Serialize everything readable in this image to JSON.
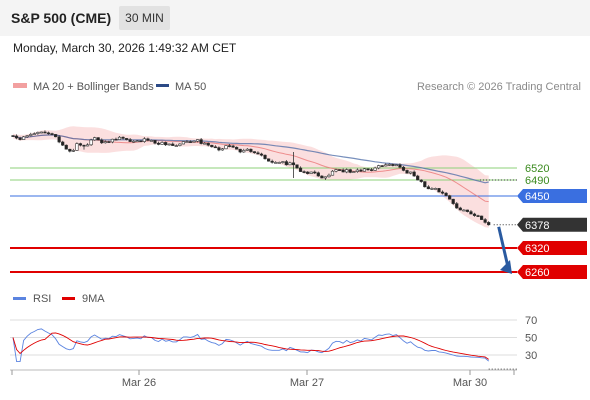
{
  "header": {
    "title": "S&P 500 (CME)",
    "timeframe": "30 MIN",
    "datetime": "Monday, March 30, 2026 1:49:32 AM CET"
  },
  "colors": {
    "candle_up": "#ffffff",
    "candle_down": "#222222",
    "bollinger_band": "#f6b8b8",
    "ma20": "#e86a6a",
    "ma50": "#4a6aa5",
    "support_minor": "#8ed27a",
    "pivot": "#3a6fe0",
    "target": "#e00000",
    "last_price": "#333333",
    "arrow": "#2a5aa0",
    "rsi": "#5b84e0",
    "rsi_ma": "#e00000"
  },
  "chart_data": [
    {
      "type": "candlestick",
      "title": "",
      "legend": [
        "MA 20 + Bollinger Bands",
        "MA 50"
      ],
      "legend_position": "top-left",
      "watermark": "Research © 2026 Trading Central",
      "x_tick_labels": [
        "Mar 26",
        "Mar 27",
        "Mar 30"
      ],
      "y_range": [
        6240,
        6630
      ],
      "last_price": 6378,
      "levels": [
        {
          "label": "6520",
          "value": 6520,
          "kind": "resistance-minor"
        },
        {
          "label": "6490",
          "value": 6490,
          "kind": "resistance-minor"
        },
        {
          "label": "6450",
          "value": 6450,
          "kind": "pivot"
        },
        {
          "label": "6320",
          "value": 6320,
          "kind": "target"
        },
        {
          "label": "6260",
          "value": 6260,
          "kind": "target"
        }
      ],
      "forecast": {
        "direction": "down",
        "from": 6378,
        "to": 6260
      },
      "close": [
        6600,
        6595,
        6591,
        6598,
        6601,
        6604,
        6606,
        6609,
        6610,
        6608,
        6606,
        6604,
        6598,
        6585,
        6577,
        6567,
        6562,
        6564,
        6581,
        6577,
        6575,
        6578,
        6590,
        6596,
        6590,
        6583,
        6586,
        6585,
        6592,
        6591,
        6597,
        6594,
        6591,
        6586,
        6587,
        6588,
        6586,
        6593,
        6589,
        6589,
        6582,
        6579,
        6584,
        6578,
        6580,
        6576,
        6576,
        6580,
        6586,
        6586,
        6585,
        6587,
        6591,
        6581,
        6582,
        6577,
        6573,
        6571,
        6565,
        6568,
        6576,
        6575,
        6572,
        6567,
        6560,
        6564,
        6567,
        6561,
        6558,
        6555,
        6552,
        6543,
        6537,
        6534,
        6534,
        6534,
        6536,
        6528,
        6533,
        6528,
        6520,
        6511,
        6510,
        6506,
        6510,
        6508,
        6500,
        6495,
        6498,
        6502,
        6512,
        6516,
        6515,
        6510,
        6516,
        6509,
        6511,
        6515,
        6512,
        6518,
        6516,
        6514,
        6520,
        6526,
        6525,
        6528,
        6529,
        6526,
        6528,
        6522,
        6514,
        6507,
        6510,
        6500,
        6490,
        6486,
        6473,
        6468,
        6469,
        6469,
        6460,
        6457,
        6451,
        6442,
        6431,
        6420,
        6415,
        6415,
        6411,
        6405,
        6401,
        6400,
        6391,
        6384,
        6378
      ],
      "ma20_last": 6436,
      "ma50_last": 6485
    },
    {
      "type": "line",
      "title": "",
      "legend": [
        "RSI",
        "9MA"
      ],
      "legend_position": "top-left",
      "y_range": [
        20,
        80
      ],
      "y_ticks": [
        30,
        50,
        70
      ],
      "rsi_last": 23,
      "rsi_ma_last": 25
    }
  ]
}
